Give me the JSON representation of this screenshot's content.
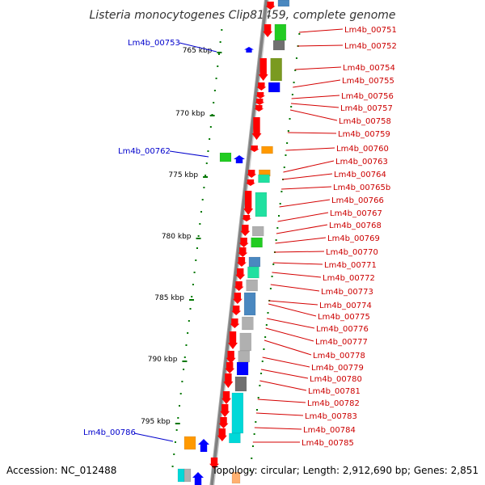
{
  "title": "Listeria monocytogenes Clip81459, complete genome",
  "footer": {
    "accession": "Accession: NC_012488",
    "stats": "Topology: circular; Length: 2,912,690 bp; Genes: 2,851"
  },
  "scale_labels": [
    "765 kbp",
    "770 kbp",
    "775 kbp",
    "780 kbp",
    "785 kbp",
    "790 kbp",
    "795 kbp"
  ],
  "right_genes": [
    "Lm4b_00751",
    "Lm4b_00752",
    "Lm4b_00754",
    "Lm4b_00755",
    "Lm4b_00756",
    "Lm4b_00757",
    "Lm4b_00758",
    "Lm4b_00759",
    "Lm4b_00760",
    "Lm4b_00763",
    "Lm4b_00764",
    "Lm4b_00765b",
    "Lm4b_00766",
    "Lm4b_00767",
    "Lm4b_00768",
    "Lm4b_00769",
    "Lm4b_00770",
    "Lm4b_00771",
    "Lm4b_00772",
    "Lm4b_00773",
    "Lm4b_00774",
    "Lm4b_00775",
    "Lm4b_00776",
    "Lm4b_00777",
    "Lm4b_00778",
    "Lm4b_00779",
    "Lm4b_00780",
    "Lm4b_00781",
    "Lm4b_00782",
    "Lm4b_00783",
    "Lm4b_00784",
    "Lm4b_00785"
  ],
  "left_genes": [
    "Lm4b_00753",
    "Lm4b_00762",
    "Lm4b_00786"
  ],
  "colors": {
    "backbone": "#808080",
    "forward_strand": "#ff0000",
    "reverse_strand": "#0000ff",
    "right_label": "#cc0000",
    "left_label": "#0000cc",
    "tick": "#007700",
    "green": "#22cc22",
    "olive": "#7a9a20",
    "orange": "#ff9900",
    "teal": "#20e0a0",
    "cyan": "#00d8d8",
    "steel": "#4a88c0",
    "silver": "#b0b0b0",
    "dark_gray": "#707070"
  }
}
